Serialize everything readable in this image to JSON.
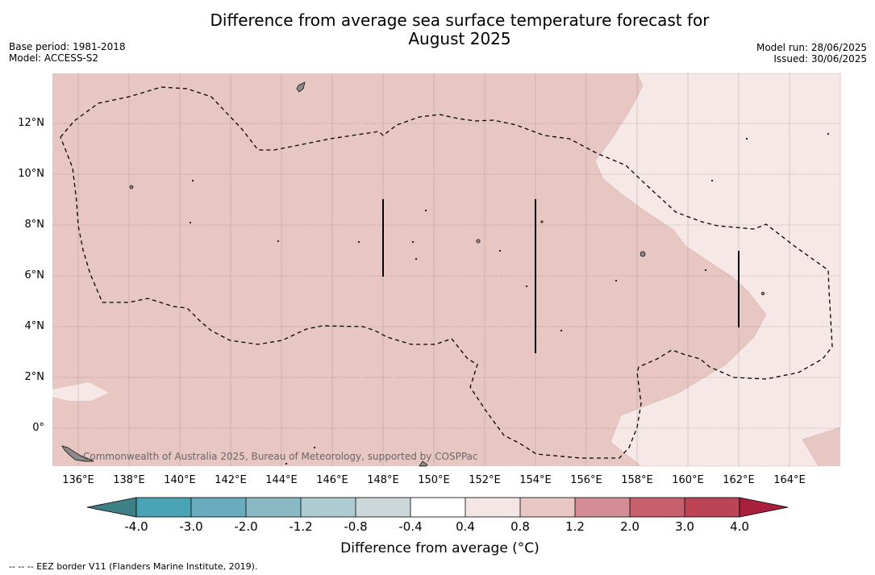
{
  "title": {
    "line1": "Difference from average sea surface temperature forecast for",
    "line2": "August 2025"
  },
  "meta": {
    "base_period": "Base period: 1981-2018",
    "model": "Model: ACCESS-S2",
    "model_run": "Model run: 28/06/2025",
    "issued": "Issued: 30/06/2025"
  },
  "map": {
    "latitude_labels": [
      "12°N",
      "10°N",
      "8°N",
      "6°N",
      "4°N",
      "2°N",
      "0°"
    ],
    "longitude_labels": [
      "136°E",
      "138°E",
      "140°E",
      "142°E",
      "144°E",
      "146°E",
      "148°E",
      "150°E",
      "152°E",
      "154°E",
      "156°E",
      "158°E",
      "160°E",
      "162°E",
      "164°E"
    ],
    "copyright": "Commonwealth of Australia 2025, Bureau of Meteorology, supported by COSPPac",
    "colors": {
      "anomaly_0_8_to_1_2": "#e8c7c2",
      "anomaly_0_4_to_0_8": "#f5e8e6",
      "land": "#8a8a8a"
    }
  },
  "colorbar": {
    "ticks": [
      "-4.0",
      "-3.0",
      "-2.0",
      "-1.2",
      "-0.8",
      "-0.4",
      "0.4",
      "0.8",
      "1.2",
      "2.0",
      "3.0",
      "4.0"
    ],
    "colors": [
      "#3f7f86",
      "#4aa3b5",
      "#6aabbd",
      "#8ab9c6",
      "#aecbd1",
      "#ccd7dc",
      "#ffffff",
      "#f5e6e6",
      "#e8c7c2",
      "#d48d94",
      "#c7606c",
      "#bb4555",
      "#a8203b"
    ],
    "label": "Difference from average (°C)"
  },
  "footnote": "--  --  -- EEZ border V11 (Flanders Marine Institute, 2019)."
}
